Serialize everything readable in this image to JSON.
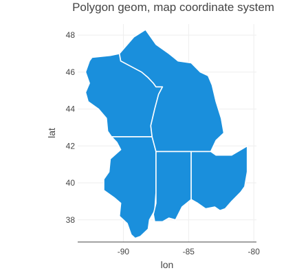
{
  "chart_data": {
    "type": "map",
    "title": "Polygon geom, map coordinate system",
    "xlabel": "lon",
    "ylabel": "lat",
    "xlim": [
      -93.5,
      -79.8
    ],
    "ylim": [
      36.8,
      48.6
    ],
    "x_ticks": [
      -90,
      -85,
      -80
    ],
    "y_ticks": [
      38,
      40,
      42,
      44,
      46,
      48
    ],
    "x_tick_labels": [
      "-90",
      "-85",
      "-80"
    ],
    "y_tick_labels": [
      "38",
      "40",
      "42",
      "44",
      "46",
      "48"
    ],
    "grid": true,
    "fill_color": "#1a8fdc",
    "border_color": "#ffffff",
    "polygons": [
      {
        "id": "wisconsin",
        "points": [
          [
            -92.4,
            46.8
          ],
          [
            -92.6,
            46.6
          ],
          [
            -92.9,
            46.0
          ],
          [
            -92.6,
            45.4
          ],
          [
            -92.9,
            44.9
          ],
          [
            -92.7,
            44.4
          ],
          [
            -91.9,
            44.0
          ],
          [
            -91.3,
            43.5
          ],
          [
            -91.2,
            42.8
          ],
          [
            -90.9,
            42.5
          ],
          [
            -87.8,
            42.5
          ],
          [
            -87.9,
            43.1
          ],
          [
            -87.6,
            44.0
          ],
          [
            -87.3,
            44.8
          ],
          [
            -87.0,
            45.2
          ],
          [
            -87.5,
            45.2
          ],
          [
            -87.7,
            45.4
          ],
          [
            -88.1,
            45.7
          ],
          [
            -88.6,
            46.0
          ],
          [
            -90.2,
            46.6
          ],
          [
            -90.3,
            47.0
          ],
          [
            -91.0,
            46.9
          ]
        ]
      },
      {
        "id": "illinois",
        "points": [
          [
            -90.9,
            42.5
          ],
          [
            -90.5,
            42.2
          ],
          [
            -90.2,
            41.8
          ],
          [
            -91.0,
            41.3
          ],
          [
            -91.1,
            40.6
          ],
          [
            -91.5,
            40.2
          ],
          [
            -91.5,
            39.6
          ],
          [
            -90.7,
            39.2
          ],
          [
            -90.2,
            38.9
          ],
          [
            -90.3,
            38.2
          ],
          [
            -89.7,
            37.8
          ],
          [
            -89.4,
            37.2
          ],
          [
            -89.1,
            37.0
          ],
          [
            -88.7,
            37.1
          ],
          [
            -88.1,
            37.5
          ],
          [
            -88.0,
            38.0
          ],
          [
            -87.6,
            38.5
          ],
          [
            -87.5,
            39.5
          ],
          [
            -87.5,
            41.7
          ],
          [
            -87.8,
            42.5
          ]
        ]
      },
      {
        "id": "michigan",
        "points": [
          [
            -87.8,
            42.5
          ],
          [
            -87.9,
            43.1
          ],
          [
            -87.6,
            44.0
          ],
          [
            -87.3,
            44.8
          ],
          [
            -87.0,
            45.2
          ],
          [
            -87.5,
            45.2
          ],
          [
            -87.7,
            45.4
          ],
          [
            -88.1,
            45.7
          ],
          [
            -88.6,
            46.0
          ],
          [
            -90.2,
            46.6
          ],
          [
            -90.3,
            47.0
          ],
          [
            -89.2,
            47.9
          ],
          [
            -88.3,
            48.3
          ],
          [
            -87.5,
            47.5
          ],
          [
            -86.5,
            47.0
          ],
          [
            -85.8,
            46.6
          ],
          [
            -84.8,
            46.5
          ],
          [
            -84.1,
            46.0
          ],
          [
            -83.5,
            45.8
          ],
          [
            -83.2,
            45.3
          ],
          [
            -82.9,
            44.4
          ],
          [
            -82.5,
            43.5
          ],
          [
            -82.3,
            42.7
          ],
          [
            -82.9,
            42.3
          ],
          [
            -83.3,
            41.7
          ],
          [
            -84.8,
            41.7
          ],
          [
            -87.2,
            41.7
          ],
          [
            -87.5,
            41.7
          ]
        ]
      },
      {
        "id": "indiana",
        "points": [
          [
            -87.5,
            41.7
          ],
          [
            -84.8,
            41.7
          ],
          [
            -84.8,
            39.1
          ],
          [
            -85.5,
            38.7
          ],
          [
            -86.0,
            38.0
          ],
          [
            -86.5,
            38.1
          ],
          [
            -87.0,
            37.9
          ],
          [
            -87.6,
            37.9
          ],
          [
            -87.7,
            38.3
          ],
          [
            -87.5,
            38.9
          ],
          [
            -87.5,
            39.6
          ]
        ]
      },
      {
        "id": "ohio",
        "points": [
          [
            -84.8,
            41.7
          ],
          [
            -83.3,
            41.7
          ],
          [
            -82.9,
            41.5
          ],
          [
            -81.7,
            41.5
          ],
          [
            -80.5,
            42.0
          ],
          [
            -80.5,
            40.6
          ],
          [
            -80.7,
            39.8
          ],
          [
            -81.0,
            39.5
          ],
          [
            -81.7,
            39.0
          ],
          [
            -82.2,
            38.6
          ],
          [
            -82.6,
            38.5
          ],
          [
            -83.0,
            38.7
          ],
          [
            -83.7,
            38.6
          ],
          [
            -84.3,
            38.9
          ],
          [
            -84.8,
            39.1
          ]
        ]
      }
    ]
  }
}
